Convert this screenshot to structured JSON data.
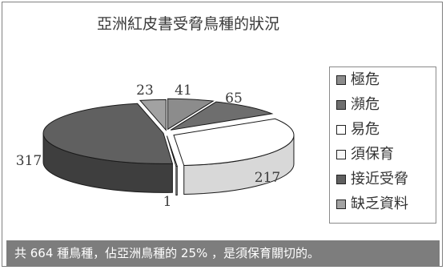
{
  "chart_data": {
    "type": "pie",
    "title": "亞洲紅皮書受脅鳥種的狀況",
    "categories": [
      "極危",
      "瀕危",
      "易危",
      "須保育",
      "接近受脅",
      "缺乏資料"
    ],
    "values": [
      41,
      65,
      217,
      1,
      317,
      23
    ],
    "data_labels": [
      "41",
      "65",
      "217",
      "1",
      "317",
      "23"
    ],
    "colors": [
      "#8c8c8c",
      "#6e6e6e",
      "#ffffff",
      "#f7f7f7",
      "#606060",
      "#a2a2a2"
    ],
    "legend_position": "right",
    "style": "3d-exploded-pie"
  },
  "footer": {
    "text": "共 664 種鳥種，佔亞洲鳥種的 25% ，是須保育關切的。"
  }
}
